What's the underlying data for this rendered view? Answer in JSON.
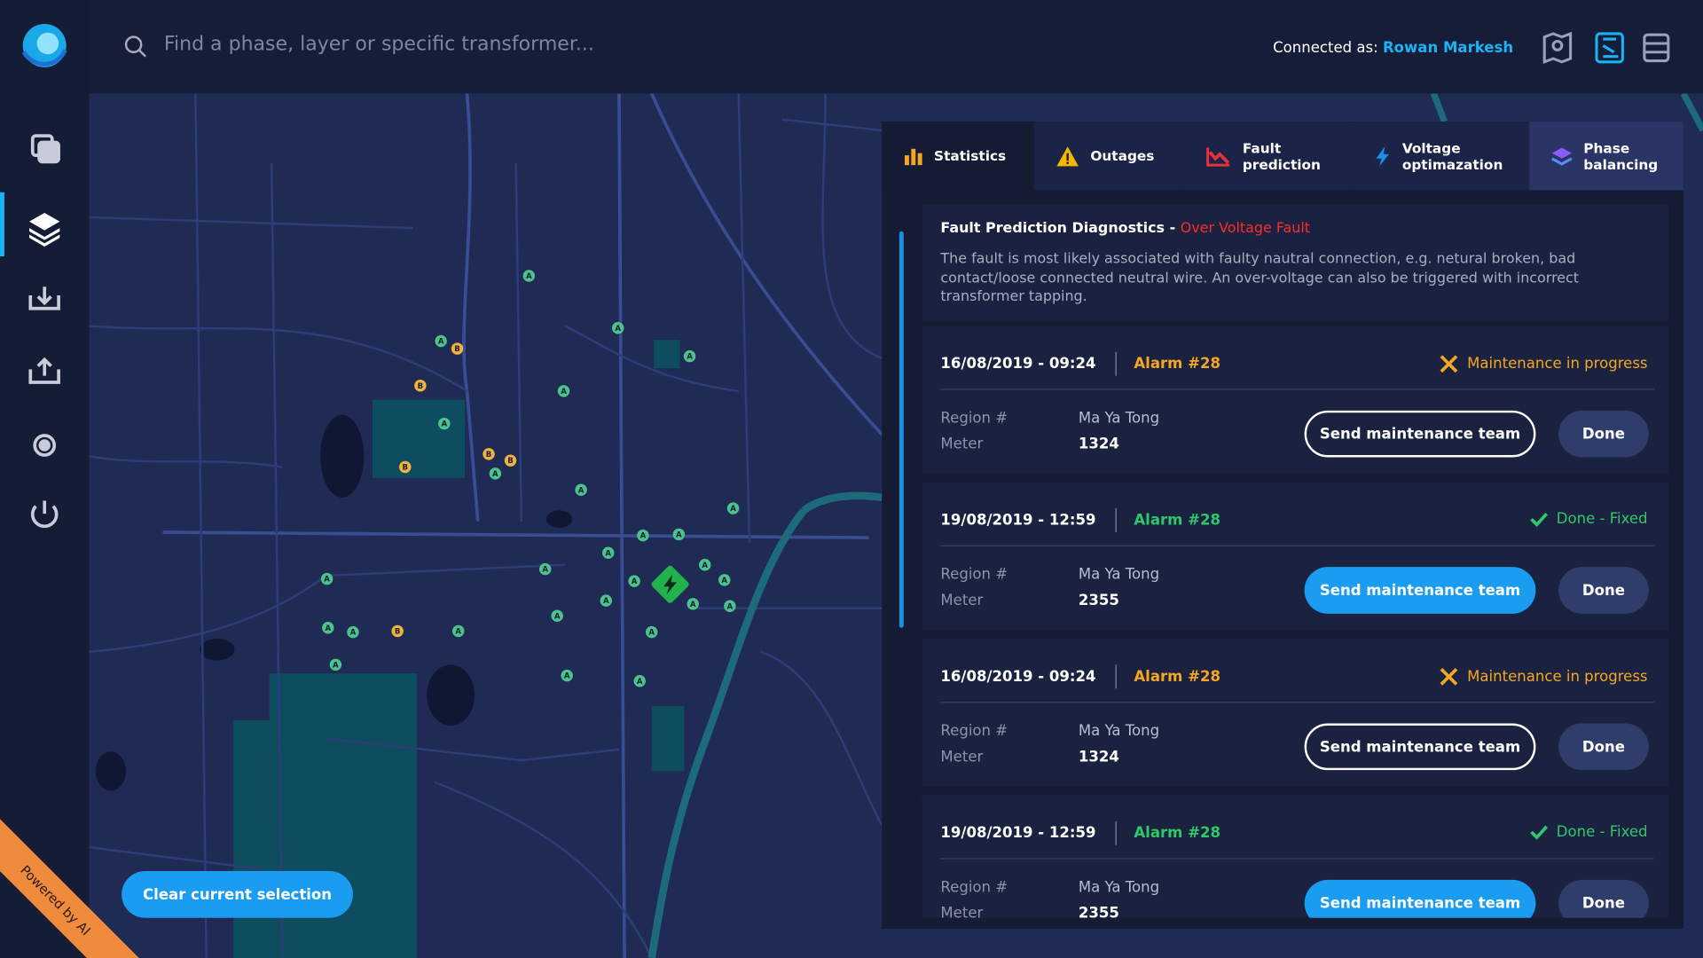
{
  "search": {
    "placeholder": "Find a phase, layer or specific transformer..."
  },
  "user": {
    "label": "Connected as:",
    "name": "Rowan Markesh"
  },
  "tabs": [
    "Statistics",
    "Outages",
    "Fault prediction",
    "Voltage optimazation",
    "Phase balancing"
  ],
  "diagnostics": {
    "title": "Fault Prediction Diagnostics -",
    "fault": "Over Voltage Fault",
    "description": "The fault is most likely associated with faulty nautral connection, e.g. netural broken, bad contact/loose connected neutral wire. An over-voltage can also be triggered with incorrect transformer tapping."
  },
  "alarm_fields": {
    "region": "Region #",
    "meter": "Meter",
    "send": "Send maintenance team",
    "done": "Done"
  },
  "alarms": [
    {
      "date": "16/08/2019 - 09:24",
      "alarm": "Alarm #28",
      "status": "Maintenance in progress",
      "color": "#f5a623",
      "button_style": "outline",
      "region": "Ma Ya Tong",
      "meter": "1324"
    },
    {
      "date": "19/08/2019 - 12:59",
      "alarm": "Alarm #28",
      "status": "Done - Fixed",
      "color": "#2ec86b",
      "button_style": "filled",
      "region": "Ma Ya Tong",
      "meter": "2355"
    },
    {
      "date": "16/08/2019 - 09:24",
      "alarm": "Alarm #28",
      "status": "Maintenance in progress",
      "color": "#f5a623",
      "button_style": "outline",
      "region": "Ma Ya Tong",
      "meter": "1324"
    },
    {
      "date": "19/08/2019 - 12:59",
      "alarm": "Alarm #28",
      "status": "Done - Fixed",
      "color": "#2ec86b",
      "button_style": "filled",
      "region": "Ma Ya Tong",
      "meter": "2355"
    }
  ],
  "map": {
    "markers": [
      "A",
      "A",
      "A",
      "A",
      "B",
      "B",
      "A",
      "A",
      "B",
      "B",
      "B",
      "A",
      "A",
      "A",
      "A",
      "A",
      "A",
      "A",
      "A",
      "A",
      "A",
      "A",
      "A",
      "A",
      "A",
      "A",
      "A",
      "A",
      "B",
      "A",
      "A",
      "A",
      "A",
      "A"
    ],
    "clear_button": "Clear current selection"
  },
  "ribbon": "Powered by AI"
}
